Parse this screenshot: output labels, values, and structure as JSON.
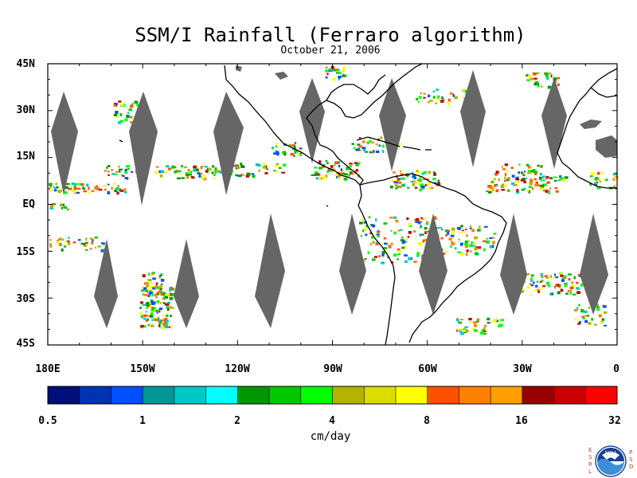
{
  "title": "SSM/I Rainfall (Ferraro algorithm)",
  "subtitle": "October 21, 2006",
  "map": {
    "lat_labels": [
      "45N",
      "30N",
      "15N",
      "EQ",
      "15S",
      "30S",
      "45S"
    ],
    "lon_labels": [
      "180E",
      "150W",
      "120W",
      "90W",
      "60W",
      "30W",
      "0"
    ],
    "lon_range": [
      -180,
      0
    ],
    "lat_range": [
      -45,
      45
    ],
    "missing_color": "#666666",
    "land_outline_color": "#000000"
  },
  "colorbar": {
    "unit_label": "cm/day",
    "tick_labels": [
      "0.5",
      "1",
      "2",
      "4",
      "8",
      "16",
      "32"
    ],
    "colors": [
      "#000f7a",
      "#0032b4",
      "#0050ff",
      "#009696",
      "#00c8c8",
      "#00ffff",
      "#009600",
      "#00c800",
      "#00ff00",
      "#b4b400",
      "#dcdc00",
      "#ffff00",
      "#ff5000",
      "#ff8000",
      "#ffa000",
      "#960000",
      "#c80000",
      "#ff0000"
    ]
  },
  "logo": {
    "left_letters": [
      "E",
      "S",
      "R",
      "L"
    ],
    "right_letters": [
      "P",
      "S",
      "D"
    ],
    "center_text": "NOAA"
  }
}
